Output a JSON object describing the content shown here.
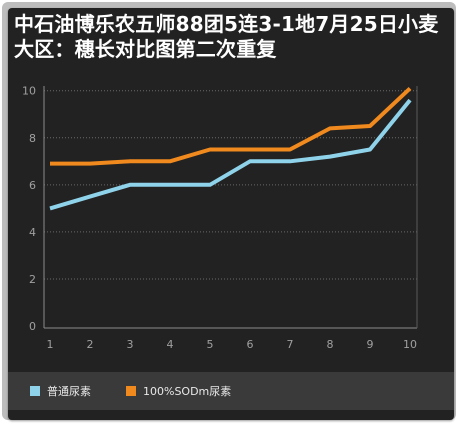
{
  "chart_data": {
    "type": "line",
    "title": "中石油博乐农五师88团5连3-1地7月25日小麦大区：穗长对比图第二次重复",
    "x": [
      "1",
      "2",
      "3",
      "4",
      "5",
      "6",
      "7",
      "8",
      "9",
      "10"
    ],
    "ylim": [
      0,
      10.2
    ],
    "yticks": [
      "0",
      "2",
      "4",
      "6",
      "8",
      "10"
    ],
    "grid": true,
    "legend_position": "bottom",
    "series": [
      {
        "name": "普通尿素",
        "color": "#8fd3eb",
        "values": [
          5.0,
          5.5,
          6.0,
          6.0,
          6.0,
          7.0,
          7.0,
          7.2,
          7.5,
          9.6
        ]
      },
      {
        "name": "100%SODm尿素",
        "color": "#f0891e",
        "values": [
          6.9,
          6.9,
          7.0,
          7.0,
          7.5,
          7.5,
          7.5,
          8.4,
          8.5,
          10.1
        ]
      }
    ]
  }
}
